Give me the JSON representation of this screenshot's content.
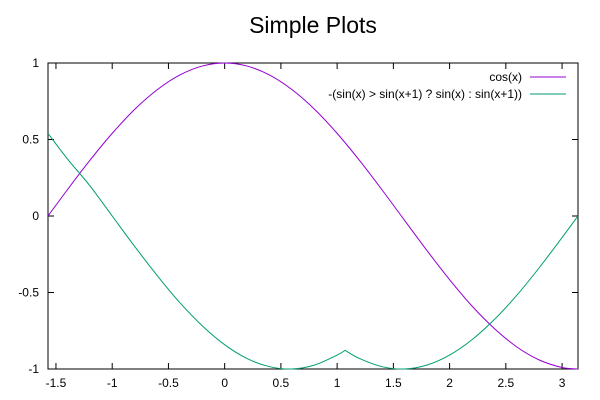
{
  "chart_data": {
    "type": "line",
    "title": "Simple Plots",
    "xlabel": "",
    "ylabel": "",
    "xlim": [
      -1.5708,
      3.1416
    ],
    "ylim": [
      -1,
      1
    ],
    "grid": false,
    "legend_position": "top-right",
    "x_ticks": [
      {
        "value": -1.5,
        "label": "-1.5"
      },
      {
        "value": -1,
        "label": "-1"
      },
      {
        "value": -0.5,
        "label": "-0.5"
      },
      {
        "value": 0,
        "label": "0"
      },
      {
        "value": 0.5,
        "label": "0.5"
      },
      {
        "value": 1,
        "label": "1"
      },
      {
        "value": 1.5,
        "label": "1.5"
      },
      {
        "value": 2,
        "label": "2"
      },
      {
        "value": 2.5,
        "label": "2.5"
      },
      {
        "value": 3,
        "label": "3"
      }
    ],
    "y_ticks": [
      {
        "value": -1,
        "label": "-1"
      },
      {
        "value": -0.5,
        "label": "-0.5"
      },
      {
        "value": 0,
        "label": "0"
      },
      {
        "value": 0.5,
        "label": "0.5"
      },
      {
        "value": 1,
        "label": "1"
      }
    ],
    "series": [
      {
        "name": "cos(x)",
        "color": "#9400d3",
        "x": [
          -1.5708,
          -1.4,
          -1.2,
          -1.0,
          -0.8,
          -0.6,
          -0.4,
          -0.2,
          0.0,
          0.2,
          0.4,
          0.6,
          0.8,
          1.0,
          1.2,
          1.4,
          1.6,
          1.8,
          2.0,
          2.2,
          2.4,
          2.6,
          2.8,
          3.0,
          3.1416
        ],
        "y": [
          0.0,
          0.17,
          0.362,
          0.54,
          0.697,
          0.825,
          0.921,
          0.98,
          1.0,
          0.98,
          0.921,
          0.825,
          0.697,
          0.54,
          0.362,
          0.17,
          -0.029,
          -0.227,
          -0.416,
          -0.589,
          -0.737,
          -0.857,
          -0.942,
          -0.99,
          -1.0
        ]
      },
      {
        "name": "-(sin(x) > sin(x+1) ? sin(x) : sin(x+1))",
        "color": "#009e73",
        "x": [
          -1.5708,
          -1.4,
          -1.2,
          -1.0,
          -0.8,
          -0.6,
          -0.4,
          -0.2,
          0.0,
          0.2,
          0.4,
          0.6,
          0.8,
          1.0,
          1.0708,
          1.2,
          1.4,
          1.6,
          1.8,
          2.0,
          2.2,
          2.4,
          2.6,
          2.8,
          3.0,
          3.1416
        ],
        "y": [
          0.54,
          0.375,
          0.199,
          0.0,
          -0.199,
          -0.389,
          -0.565,
          -0.717,
          -0.841,
          -0.932,
          -0.985,
          -1.0,
          -0.974,
          -0.909,
          -0.878,
          -0.932,
          -0.985,
          -1.0,
          -0.974,
          -0.909,
          -0.808,
          -0.675,
          -0.516,
          -0.335,
          -0.141,
          0.0
        ]
      }
    ]
  }
}
